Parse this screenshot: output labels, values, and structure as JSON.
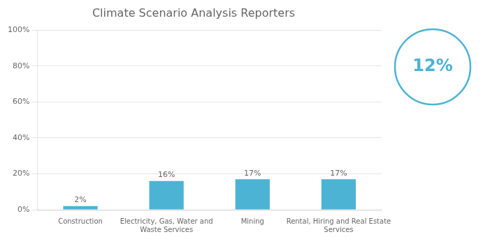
{
  "chart_data": {
    "type": "bar",
    "title": "Climate Scenario Analysis Reporters",
    "categories": [
      "Construction",
      "Electricity, Gas, Water and\nWaste Services",
      "Mining",
      "Rental, Hiring and Real Estate\nServices"
    ],
    "values": [
      2,
      16,
      17,
      17
    ],
    "value_labels": [
      "2%",
      "16%",
      "17%",
      "17%"
    ],
    "data_labels": true,
    "color": "#4db3d4",
    "ylim": [
      0,
      100
    ],
    "yticks": [
      {
        "value": 0,
        "label": "0%"
      },
      {
        "value": 20,
        "label": "20%"
      },
      {
        "value": 40,
        "label": "40%"
      },
      {
        "value": 60,
        "label": "60%"
      },
      {
        "value": 80,
        "label": "80%"
      },
      {
        "value": 100,
        "label": "100%"
      }
    ],
    "grid": true,
    "annotations": [
      "12%"
    ]
  }
}
